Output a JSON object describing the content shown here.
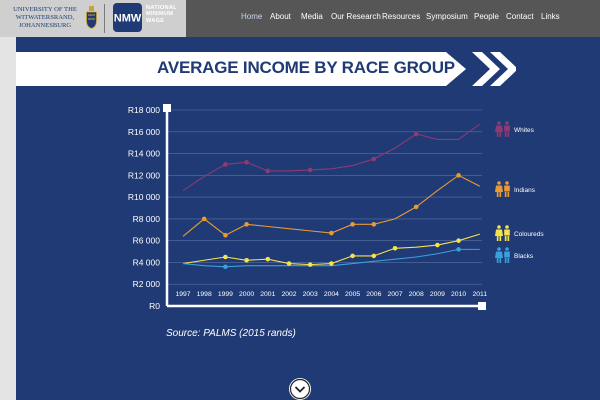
{
  "header": {
    "wits_logo": {
      "lines": [
        "UNIVERSITY OF THE",
        "WITWATERSRAND,",
        "JOHANNESBURG"
      ],
      "crest": "crest-icon"
    },
    "nmw_logo": {
      "mark": "NMW",
      "lines": [
        "NATIONAL",
        "MINIMUM",
        "WAGE"
      ]
    },
    "nav": [
      {
        "label": "Home",
        "active": true
      },
      {
        "label": "About"
      },
      {
        "label": "Media"
      },
      {
        "label": "Our Research"
      },
      {
        "label": "Resources"
      },
      {
        "label": "Symposium"
      },
      {
        "label": "People"
      },
      {
        "label": "Contact"
      },
      {
        "label": "Links"
      }
    ]
  },
  "infographic": {
    "title": "AVERAGE INCOME BY RACE GROUP",
    "source": "Source: PALMS (2015 rands)"
  },
  "colors": {
    "panel": "#1f3a74",
    "whites": "#8e3a73",
    "indians": "#e89a36",
    "coloureds": "#f7e14d",
    "blacks": "#3aa0dd"
  },
  "chart_data": {
    "type": "line",
    "x": [
      "1997",
      "1998",
      "1999",
      "2000",
      "2001",
      "2002",
      "2003",
      "2004",
      "2005",
      "2006",
      "2007",
      "2008",
      "2009",
      "2010",
      "2011"
    ],
    "y_ticks": [
      "R0",
      "R2 000",
      "R4 000",
      "R6 000",
      "R8 000",
      "R10 000",
      "R12 000",
      "R14 000",
      "R16 000",
      "R18 000"
    ],
    "ylim": [
      0,
      18000
    ],
    "grid": true,
    "legend_position": "right",
    "series": [
      {
        "name": "Whites",
        "color": "#8e3a73",
        "icon": "people-icon",
        "values": [
          10600,
          11900,
          13000,
          13200,
          12400,
          12400,
          12500,
          12600,
          12900,
          13500,
          14500,
          15800,
          15300,
          15300,
          16700
        ]
      },
      {
        "name": "Indians",
        "color": "#e89a36",
        "icon": "people-icon",
        "values": [
          6400,
          8000,
          6500,
          7500,
          7300,
          7100,
          6900,
          6700,
          7500,
          7500,
          8000,
          9100,
          10600,
          12000,
          11000
        ]
      },
      {
        "name": "Coloureds",
        "color": "#f7e14d",
        "icon": "people-icon",
        "values": [
          3900,
          4200,
          4500,
          4200,
          4300,
          3900,
          3800,
          3900,
          4600,
          4600,
          5300,
          5400,
          5600,
          6000,
          6600
        ]
      },
      {
        "name": "Blacks",
        "color": "#3aa0dd",
        "icon": "people-icon",
        "values": [
          3900,
          3700,
          3600,
          3700,
          3700,
          3700,
          3700,
          3700,
          3900,
          4100,
          4300,
          4500,
          4800,
          5200,
          5200
        ]
      }
    ],
    "markers": {
      "Whites": [
        0,
        0,
        1,
        1,
        1,
        0,
        1,
        0,
        0,
        1,
        0,
        1,
        0,
        0,
        0
      ],
      "Indians": [
        0,
        1,
        1,
        1,
        0,
        0,
        0,
        1,
        1,
        1,
        0,
        1,
        0,
        1,
        0
      ],
      "Coloureds": [
        0,
        0,
        1,
        1,
        1,
        1,
        1,
        1,
        1,
        1,
        1,
        0,
        1,
        1,
        0
      ],
      "Blacks": [
        0,
        0,
        1,
        0,
        0,
        0,
        0,
        0,
        0,
        0,
        0,
        0,
        0,
        1,
        0
      ]
    }
  }
}
